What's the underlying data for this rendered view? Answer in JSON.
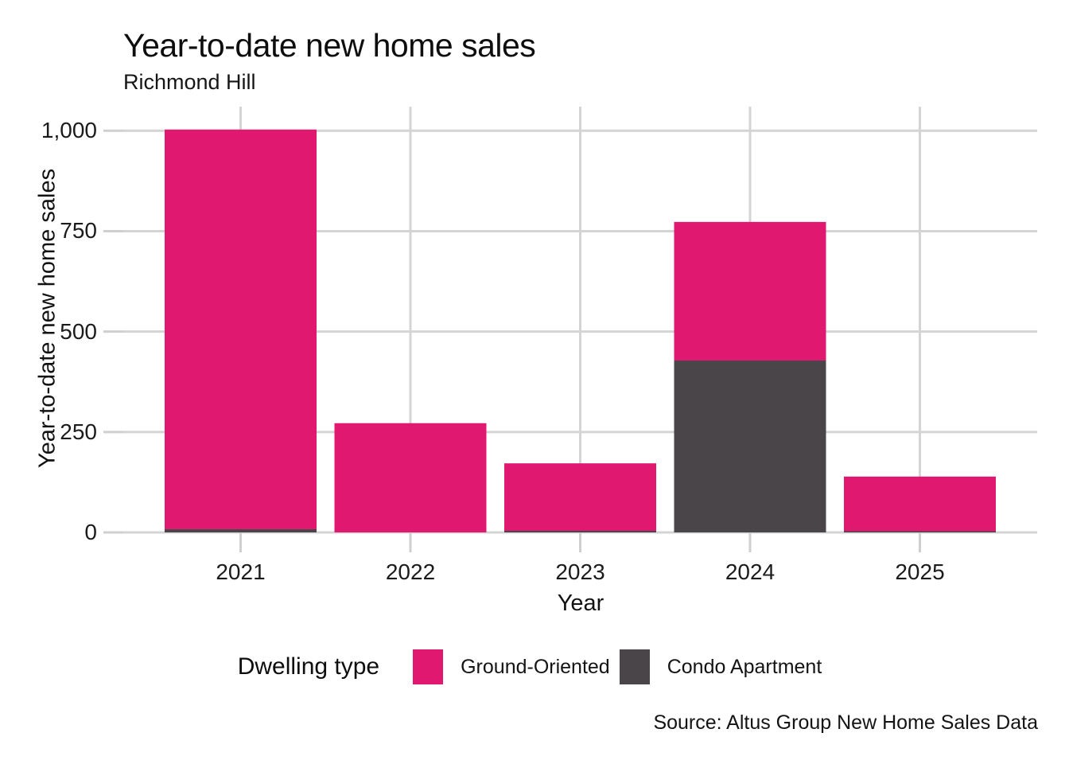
{
  "chart_data": {
    "type": "bar",
    "stacked": true,
    "title": "Year-to-date new home sales",
    "subtitle": "Richmond Hill",
    "xlabel": "Year",
    "ylabel": "Year-to-date new home sales",
    "source": "Source: Altus Group New Home Sales Data",
    "legend_title": "Dwelling type",
    "legend_position": "bottom",
    "grid": true,
    "categories": [
      "2021",
      "2022",
      "2023",
      "2024",
      "2025"
    ],
    "series": [
      {
        "name": "Ground-Oriented",
        "color": "#E0186F",
        "values": [
          995,
          272,
          168,
          345,
          136
        ]
      },
      {
        "name": "Condo Apartment",
        "color": "#494549",
        "values": [
          8,
          0,
          4,
          428,
          3
        ]
      }
    ],
    "stack_order_bottom_to_top": [
      "Condo Apartment",
      "Ground-Oriented"
    ],
    "totals": [
      1003,
      272,
      172,
      773,
      139
    ],
    "ylim": [
      0,
      1060
    ],
    "yticks": [
      0,
      250,
      500,
      750,
      1000
    ],
    "ytick_labels": [
      "0",
      "250",
      "500",
      "750",
      "1,000"
    ],
    "colors": {
      "grid": "#D4D4D4",
      "tick": "#CFCFCF",
      "background": "#FFFFFF",
      "text": "#111111"
    }
  }
}
